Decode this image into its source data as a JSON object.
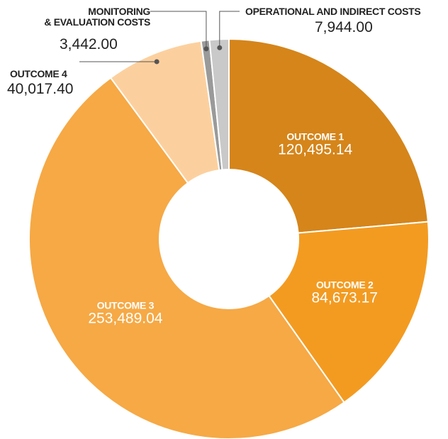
{
  "chart_data": {
    "type": "donut",
    "categories": [
      "OUTCOME 1",
      "OUTCOME 2",
      "OUTCOME 3",
      "OUTCOME 4",
      "MONITORING\n& EVALUATION COSTS",
      "OPERATIONAL AND INDIRECT COSTS"
    ],
    "values": [
      120495.14,
      84673.17,
      253489.04,
      40017.4,
      3442.0,
      7944.0
    ],
    "value_labels": [
      "120,495.14",
      "84,673.17",
      "253,489.04",
      "40,017.40",
      "3,442.00",
      "7,944.00"
    ],
    "colors": [
      "#d5851a",
      "#f39b21",
      "#f6a945",
      "#fcd09e",
      "#9a9a9a",
      "#c9c9c9"
    ]
  }
}
